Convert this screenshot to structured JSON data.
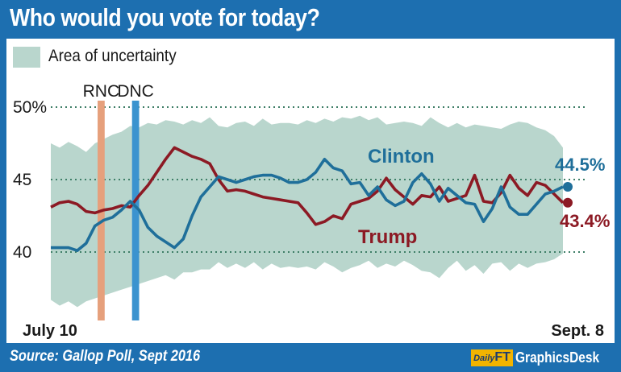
{
  "title": "Who would you vote for today?",
  "source": "Source: Gallop Poll, Sept 2016",
  "brand": {
    "badge_small": "Daily",
    "badge_big": "FT",
    "name": "GraphicsDesk"
  },
  "colors": {
    "frame": "#1d6fb0",
    "uncertainty": "#b9d6cd",
    "clinton": "#1f6f9a",
    "trump": "#8c1a24",
    "rnc": "#e6a07c",
    "dnc": "#3b93cf"
  },
  "chart_data": {
    "type": "line",
    "x_start_label": "July 10",
    "x_end_label": "Sept. 8",
    "ylim": [
      35,
      51
    ],
    "yticks": [
      {
        "value": 50,
        "label": "50%"
      },
      {
        "value": 45,
        "label": "45"
      },
      {
        "value": 40,
        "label": "40"
      }
    ],
    "grid": "dotted",
    "legend": {
      "label": "Area of uncertainty",
      "position": "top-left"
    },
    "events": [
      {
        "label": "RNC",
        "start": 5.3,
        "end": 6.1
      },
      {
        "label": "DNC",
        "start": 9.2,
        "end": 10.0
      }
    ],
    "uncertainty_band": {
      "upper": [
        47.5,
        47.2,
        47.6,
        47.3,
        46.9,
        47.5,
        47.8,
        48.1,
        48.3,
        48.7,
        48.6,
        48.9,
        48.8,
        49.1,
        49.0,
        48.8,
        49.1,
        48.9,
        49.3,
        48.7,
        48.6,
        48.9,
        49.0,
        48.7,
        49.2,
        48.8,
        48.9,
        48.9,
        48.8,
        49.1,
        48.9,
        49.2,
        49.0,
        49.3,
        49.2,
        49.4,
        49.1,
        49.3,
        48.8,
        48.9,
        49.0,
        48.9,
        48.7,
        49.3,
        48.9,
        48.6,
        48.9,
        48.6,
        48.8,
        48.7,
        48.6,
        48.5,
        48.8,
        49.0,
        48.9,
        48.6,
        48.4,
        48.0,
        47.2
      ],
      "lower": [
        36.7,
        36.3,
        36.6,
        36.2,
        36.6,
        36.8,
        37.0,
        37.2,
        37.4,
        37.6,
        37.8,
        38.0,
        38.2,
        38.4,
        38.1,
        38.6,
        38.6,
        38.8,
        38.8,
        39.3,
        38.9,
        39.2,
        38.9,
        39.3,
        38.8,
        39.2,
        38.9,
        39.0,
        38.9,
        39.0,
        38.8,
        39.3,
        39.0,
        38.6,
        38.9,
        39.1,
        39.4,
        38.9,
        39.2,
        39.0,
        39.4,
        39.1,
        38.7,
        38.6,
        38.2,
        38.9,
        39.4,
        38.7,
        39.1,
        38.5,
        39.2,
        39.3,
        38.7,
        39.2,
        38.9,
        39.2,
        39.3,
        39.5,
        39.9
      ]
    },
    "series": [
      {
        "name": "Clinton",
        "end_label": "44.5%",
        "end_value": 44.5,
        "values": [
          40.3,
          40.3,
          40.3,
          40.1,
          40.6,
          41.8,
          42.2,
          42.4,
          42.9,
          43.5,
          42.9,
          41.7,
          41.1,
          40.7,
          40.3,
          40.9,
          42.5,
          43.8,
          44.5,
          45.2,
          45.0,
          44.8,
          45.0,
          45.2,
          45.3,
          45.3,
          45.1,
          44.8,
          44.8,
          45.0,
          45.5,
          46.4,
          45.8,
          45.6,
          44.7,
          44.8,
          43.9,
          44.5,
          43.6,
          43.2,
          43.5,
          44.8,
          45.4,
          44.7,
          43.5,
          44.4,
          43.9,
          43.4,
          43.3,
          42.1,
          43.0,
          44.5,
          43.1,
          42.6,
          42.6,
          43.3,
          44.0,
          44.2,
          44.5
        ]
      },
      {
        "name": "Trump",
        "end_label": "43.4%",
        "end_value": 43.4,
        "values": [
          43.1,
          43.4,
          43.5,
          43.3,
          42.8,
          42.7,
          42.9,
          43.0,
          43.2,
          43.1,
          43.9,
          44.6,
          45.5,
          46.4,
          47.2,
          46.9,
          46.6,
          46.4,
          46.1,
          45.0,
          44.2,
          44.3,
          44.2,
          44.0,
          43.8,
          43.7,
          43.6,
          43.5,
          43.4,
          42.7,
          41.9,
          42.1,
          42.5,
          42.3,
          43.3,
          43.5,
          43.7,
          44.2,
          45.1,
          44.3,
          43.8,
          43.3,
          43.9,
          43.8,
          44.5,
          43.5,
          43.7,
          43.9,
          45.3,
          43.5,
          43.4,
          44.1,
          45.3,
          44.4,
          43.9,
          44.8,
          44.6,
          44.0,
          43.4
        ]
      }
    ]
  }
}
